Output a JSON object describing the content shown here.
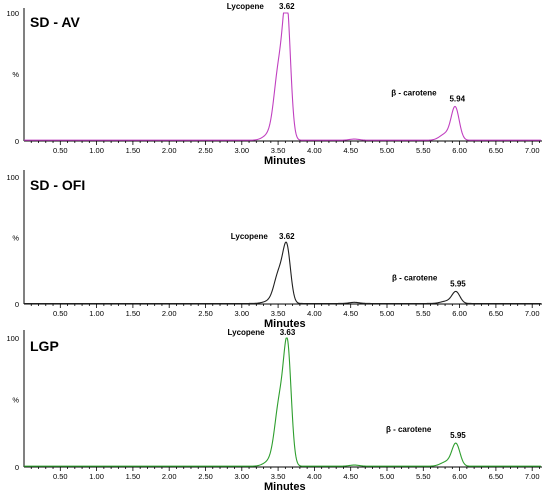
{
  "chart_data": [
    {
      "type": "line",
      "title": "SD - AV",
      "xlabel": "Minutes",
      "ylabel": "%",
      "xlim": [
        0,
        7.2
      ],
      "ylim": [
        0,
        100
      ],
      "x_ticks": [
        "0.50",
        "1.00",
        "1.50",
        "2.00",
        "2.50",
        "3.00",
        "3.50",
        "4.00",
        "4.50",
        "5.00",
        "5.50",
        "6.00",
        "6.50",
        "7.00"
      ],
      "y_ticks": [
        "0",
        "%",
        "100"
      ],
      "color": "#c040c0",
      "baseline": 0.6,
      "peaks": [
        {
          "label": "Lycopene",
          "rt_label": "3.62",
          "rt": 3.62,
          "height": 98
        },
        {
          "label": "β - carotene",
          "rt_label": "5.94",
          "rt": 5.94,
          "height": 25
        }
      ]
    },
    {
      "type": "line",
      "title": "SD - OFI",
      "xlabel": "Minutes",
      "ylabel": "%",
      "xlim": [
        0,
        7.2
      ],
      "ylim": [
        0,
        100
      ],
      "x_ticks": [
        "0.50",
        "1.00",
        "1.50",
        "2.00",
        "2.50",
        "3.00",
        "3.50",
        "4.00",
        "4.50",
        "5.00",
        "5.50",
        "6.00",
        "6.50",
        "7.00"
      ],
      "y_ticks": [
        "0",
        "%",
        "100"
      ],
      "color": "#202020",
      "baseline": 0.4,
      "peaks": [
        {
          "label": "Lycopene",
          "rt_label": "3.62",
          "rt": 3.62,
          "height": 42
        },
        {
          "label": "β - carotene",
          "rt_label": "5.95",
          "rt": 5.95,
          "height": 9
        }
      ]
    },
    {
      "type": "line",
      "title": "LGP",
      "xlabel": "Minutes",
      "ylabel": "%",
      "xlim": [
        0,
        7.2
      ],
      "ylim": [
        0,
        100
      ],
      "x_ticks": [
        "0.50",
        "1.00",
        "1.50",
        "2.00",
        "2.50",
        "3.00",
        "3.50",
        "4.00",
        "4.50",
        "5.00",
        "5.50",
        "6.00",
        "6.50",
        "7.00"
      ],
      "y_ticks": [
        "0",
        "%",
        "100"
      ],
      "color": "#2e9e2e",
      "baseline": 0.6,
      "peaks": [
        {
          "label": "Lycopene",
          "rt_label": "3.63",
          "rt": 3.63,
          "height": 87
        },
        {
          "label": "β - carotene",
          "rt_label": "5.95",
          "rt": 5.95,
          "height": 17
        }
      ]
    }
  ]
}
